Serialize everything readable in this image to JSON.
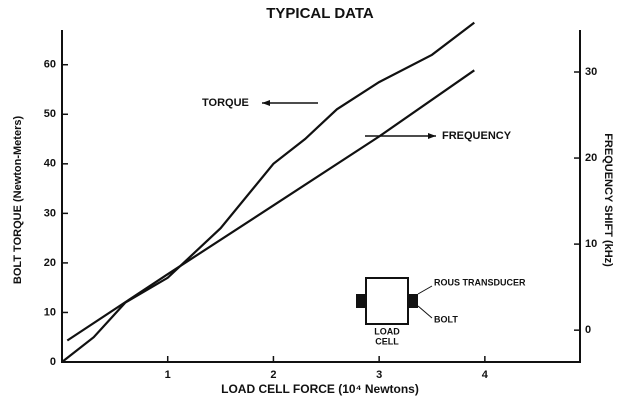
{
  "chart_data": {
    "type": "line",
    "title": "TYPICAL DATA",
    "x_label": "LOAD CELL FORCE (10⁴ Newtons)",
    "y_label": "BOLT TORQUE (Newton-Meters)",
    "y2_label": "FREQUENCY SHIFT (kHz)",
    "xlim": [
      0,
      4.9
    ],
    "xticks": [
      1,
      2,
      3,
      4
    ],
    "ylim": [
      0,
      66
    ],
    "yticks": [
      0,
      10,
      20,
      30,
      40,
      50,
      60
    ],
    "y2lim": [
      -3.7,
      34.3
    ],
    "y2ticks": [
      0,
      10,
      20,
      30
    ],
    "series": [
      {
        "name": "TORQUE",
        "color": "#111111",
        "x": [
          0,
          0.3,
          0.6,
          1,
          1.5,
          2,
          2.3,
          2.6,
          3,
          3.5,
          3.9
        ],
        "values": [
          0,
          5,
          12,
          17,
          27,
          40,
          45,
          51,
          56.5,
          62,
          68.5
        ]
      },
      {
        "name": "FREQUENCY",
        "color": "#111111",
        "axis": "y2",
        "x": [
          0.05,
          1,
          2,
          3,
          3.9
        ],
        "values": [
          -1.2,
          6.5,
          14.5,
          22.5,
          30.2
        ]
      }
    ],
    "inset_labels": [
      "ROUS TRANSDUCER",
      "BOLT",
      "LOAD",
      "CELL"
    ]
  }
}
